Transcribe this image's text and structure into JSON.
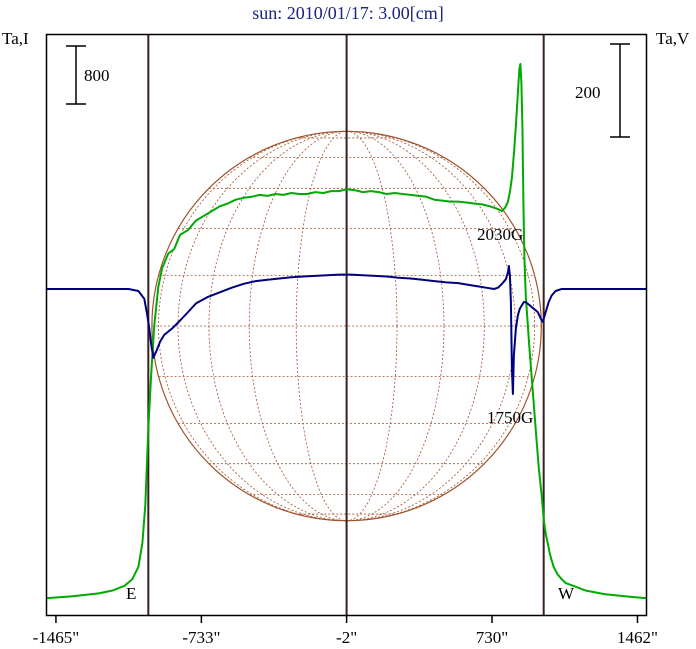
{
  "chart_data": {
    "type": "line",
    "title": "sun: 2010/01/17: 3.00[cm]",
    "left_axis_label": "Ta,I",
    "right_axis_label": "Ta,V",
    "left_scale_label": "800",
    "right_scale_label": "200",
    "x_ticks": [
      "-1465\"",
      "-733\"",
      "-2\"",
      "730\"",
      "1462\""
    ],
    "x_tick_values": [
      -1465,
      -733,
      -2,
      730,
      1462
    ],
    "xlim": [
      -1510,
      1505
    ],
    "vertical_markers": [
      {
        "x": -1000,
        "label": "E"
      },
      {
        "x": -2,
        "label": ""
      },
      {
        "x": 990,
        "label": "W"
      }
    ],
    "disk": {
      "center_x": -2,
      "radius_arcsec": 980
    },
    "annotations": [
      {
        "text": "2030G",
        "x": 810
      },
      {
        "text": "1750G",
        "x": 820
      }
    ],
    "colors": {
      "title": "#1a237e",
      "intensity": "#00aa00",
      "polarization": "#000080",
      "marker": "#3b1f1f",
      "disk": "#a0522d",
      "frame": "#000000"
    },
    "series": [
      {
        "name": "I",
        "color": "#00aa00",
        "x": [
          -1510,
          -1380,
          -1250,
          -1180,
          -1120,
          -1080,
          -1050,
          -1030,
          -1015,
          -1000,
          -985,
          -970,
          -950,
          -930,
          -900,
          -870,
          -840,
          -800,
          -760,
          -720,
          -680,
          -640,
          -600,
          -560,
          -520,
          -480,
          -440,
          -400,
          -360,
          -320,
          -280,
          -240,
          -200,
          -160,
          -120,
          -80,
          -40,
          0,
          40,
          80,
          120,
          160,
          200,
          240,
          280,
          320,
          360,
          400,
          440,
          480,
          520,
          560,
          600,
          640,
          680,
          720,
          760,
          770,
          780,
          790,
          800,
          810,
          820,
          830,
          840,
          850,
          860,
          868,
          873,
          878,
          883,
          888,
          893,
          900,
          910,
          920,
          935,
          950,
          965,
          980,
          990,
          1000,
          1010,
          1020,
          1030,
          1040,
          1060,
          1080,
          1100,
          1150,
          1200,
          1250,
          1300,
          1350,
          1400,
          1450,
          1505
        ],
        "y": [
          2,
          4,
          7,
          10,
          15,
          22,
          35,
          60,
          100,
          180,
          240,
          290,
          330,
          350,
          365,
          370,
          385,
          390,
          400,
          405,
          410,
          415,
          418,
          422,
          424,
          425,
          427,
          426,
          428,
          427,
          429,
          428,
          428,
          430,
          429,
          431,
          431,
          433,
          432,
          430,
          431,
          430,
          428,
          429,
          428,
          427,
          426,
          425,
          422,
          421,
          420,
          420,
          419,
          418,
          417,
          415,
          412,
          411,
          410,
          412,
          415,
          420,
          430,
          445,
          470,
          500,
          535,
          560,
          565,
          545,
          500,
          420,
          360,
          320,
          290,
          260,
          220,
          180,
          140,
          110,
          85,
          70,
          60,
          50,
          42,
          35,
          27,
          22,
          18,
          14,
          10,
          8,
          6,
          5,
          4,
          3,
          2
        ]
      },
      {
        "name": "V",
        "color": "#000080",
        "x": [
          -1510,
          -1300,
          -1100,
          -1050,
          -1020,
          -1005,
          -995,
          -985,
          -975,
          -960,
          -940,
          -920,
          -880,
          -840,
          -800,
          -760,
          -700,
          -640,
          -580,
          -520,
          -460,
          -400,
          -340,
          -280,
          -220,
          -160,
          -100,
          -40,
          20,
          80,
          140,
          200,
          260,
          320,
          380,
          440,
          500,
          560,
          620,
          660,
          700,
          740,
          760,
          780,
          800,
          810,
          815,
          820,
          825,
          830,
          835,
          840,
          850,
          860,
          870,
          880,
          890,
          900,
          920,
          940,
          960,
          975,
          985,
          995,
          1005,
          1015,
          1030,
          1050,
          1080,
          1150,
          1250,
          1350,
          1505
        ],
        "y": [
          0,
          0,
          0,
          -3,
          -15,
          -40,
          -60,
          -85,
          -105,
          -95,
          -80,
          -70,
          -60,
          -48,
          -35,
          -22,
          -12,
          -5,
          2,
          8,
          12,
          14,
          16,
          18,
          19,
          20,
          21,
          22,
          22,
          21,
          20,
          19,
          17,
          16,
          14,
          12,
          10,
          9,
          6,
          4,
          2,
          0,
          2,
          8,
          15,
          25,
          35,
          20,
          -20,
          -120,
          -160,
          -100,
          -60,
          -40,
          -30,
          -25,
          -20,
          -20,
          -25,
          -30,
          -35,
          -45,
          -50,
          -40,
          -30,
          -20,
          -10,
          -3,
          0,
          0,
          0,
          0,
          0
        ]
      }
    ]
  }
}
